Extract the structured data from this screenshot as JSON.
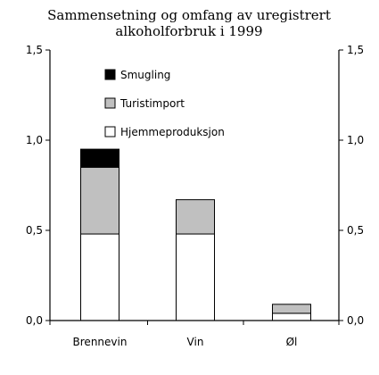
{
  "chart_data": {
    "type": "bar",
    "stacked": true,
    "title": "Sammensetning og omfang  av uregistrert\nalkoholforbruk i 1999",
    "categories": [
      "Brennevin",
      "Vin",
      "Øl"
    ],
    "series": [
      {
        "name": "Hjemmeproduksjon",
        "values": [
          0.48,
          0.48,
          0.04
        ],
        "color": "#ffffff"
      },
      {
        "name": "Turistimport",
        "values": [
          0.37,
          0.19,
          0.05
        ],
        "color": "#c0c0c0"
      },
      {
        "name": "Smugling",
        "values": [
          0.1,
          0.0,
          0.0
        ],
        "color": "#000000"
      }
    ],
    "ylim": [
      0,
      1.5
    ],
    "yticks": [
      0,
      0.5,
      1.0,
      1.5
    ],
    "ytick_labels": [
      "0,0",
      "0,5",
      "1,0",
      "1,5"
    ],
    "y_axis_right_mirrored": true,
    "grid": false,
    "legend_placement": "top-left inside plot, reversed order (Smugling on top)",
    "xlabel": "",
    "ylabel": ""
  }
}
